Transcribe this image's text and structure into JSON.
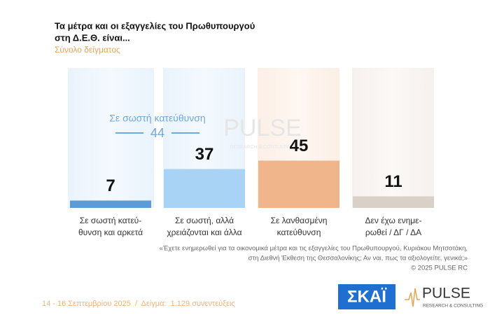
{
  "chart_data": {
    "type": "bar",
    "title": [
      "Τα μέτρα και οι εξαγγελίες του Πρωθυπουργού",
      "στη Δ.Ε.Θ. είναι..."
    ],
    "subtitle": "Σύνολο δείγματος",
    "categories": [
      [
        "Σε σωστή κατεύ-",
        "θυνση και αρκετά"
      ],
      [
        "Σε σωστή, αλλά",
        "χρειάζονται και άλλα"
      ],
      [
        "Σε λανθασμένη",
        "κατεύθυνση"
      ],
      [
        "Δεν έχω ενημε-",
        "ρωθεί / ΔΓ / ΔΑ"
      ]
    ],
    "values": [
      7,
      37,
      45,
      11
    ],
    "colors": [
      "#5b9bd8",
      "#a8d3f5",
      "#f0b58a",
      "#d9d0c8"
    ],
    "annotation": {
      "label": "Σε σωστή κατεύθυνση",
      "value": 44
    },
    "question": [
      "«Έχετε ενημερωθεί για τα οικονομικά μέτρα και τις εξαγγελίες του Πρωθυπουργού, Κυριάκου Μητσοτάκη,",
      "στη Διεθνή Έκθεση της Θεσσαλονίκης; Αν ναι, πως τα αξιολογείτε, γενικά;»"
    ],
    "copyright": "© 2025 PULSE RC",
    "footer": "14 - 16 Σεπτεμβρίου 2025  /  Δείγμα:  1.129 συνεντεύξεις",
    "logos": {
      "skai": "ΣΚΑΪ",
      "pulse": "PULSE",
      "pulse_sub": "RESEARCH & CONSULTING"
    }
  }
}
